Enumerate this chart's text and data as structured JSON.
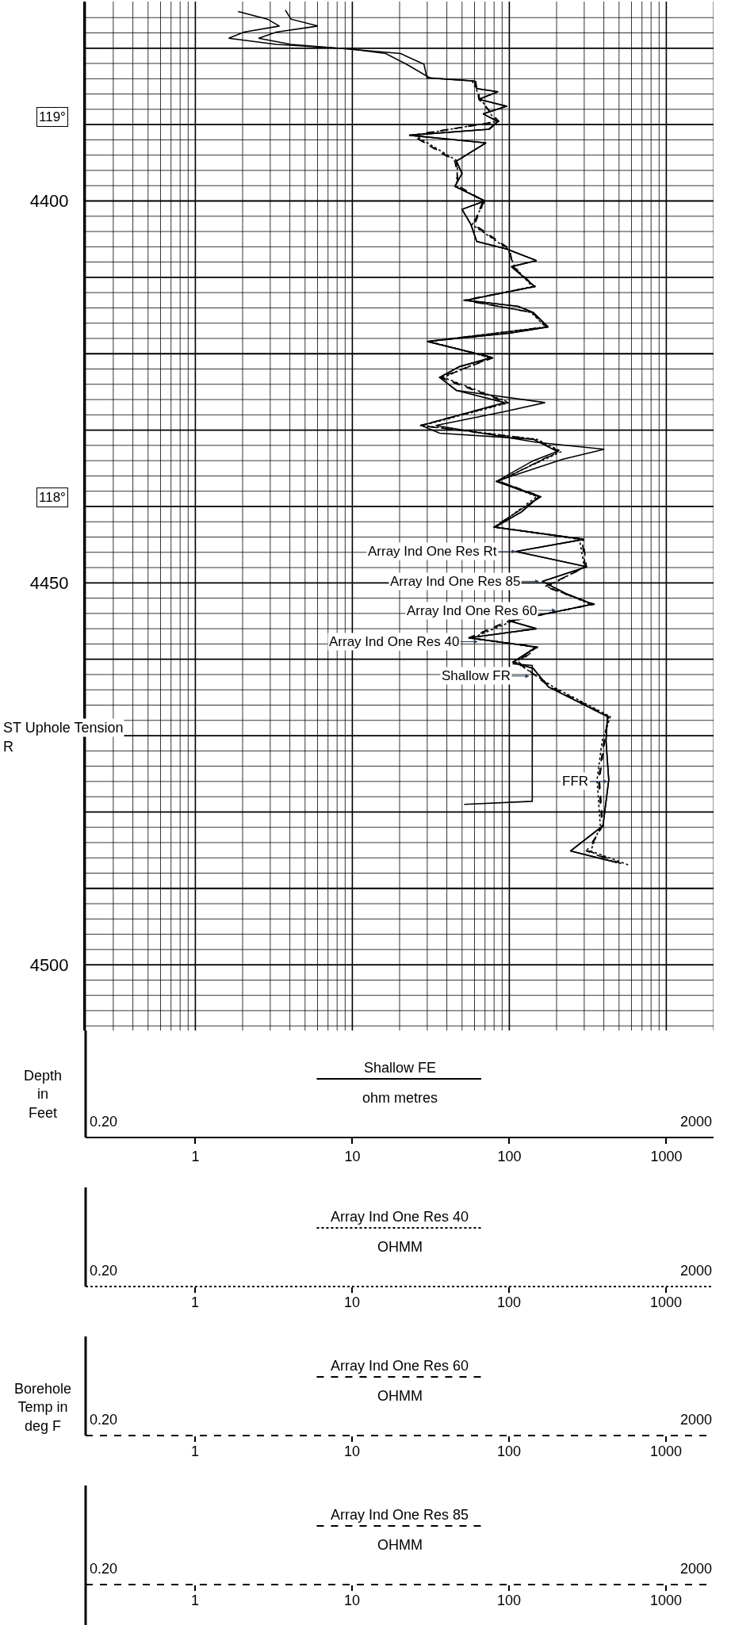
{
  "chart_data": [
    {
      "type": "line",
      "ylabel": "Depth in Feet",
      "log": "x",
      "grid": true,
      "xlim": [
        0.2,
        2000
      ],
      "ylim": [
        4508.6,
        4373.9
      ],
      "xticks": [
        {
          "value": 0.2,
          "label": null
        },
        {
          "value": 0.3,
          "label": null
        },
        {
          "value": 0.4,
          "label": null
        },
        {
          "value": 0.5,
          "label": null
        },
        {
          "value": 0.6,
          "label": null
        },
        {
          "value": 0.7,
          "label": null
        },
        {
          "value": 0.8,
          "label": null
        },
        {
          "value": 0.9,
          "label": null
        },
        1,
        {
          "value": 2,
          "label": null
        },
        {
          "value": 3,
          "label": null
        },
        {
          "value": 4,
          "label": null
        },
        {
          "value": 5,
          "label": null
        },
        {
          "value": 6,
          "label": null
        },
        {
          "value": 7,
          "label": null
        },
        {
          "value": 8,
          "label": null
        },
        {
          "value": 9,
          "label": null
        },
        10,
        {
          "value": 20,
          "label": null
        },
        {
          "value": 30,
          "label": null
        },
        {
          "value": 40,
          "label": null
        },
        {
          "value": 50,
          "label": null
        },
        {
          "value": 60,
          "label": null
        },
        {
          "value": 70,
          "label": null
        },
        {
          "value": 80,
          "label": null
        },
        {
          "value": 90,
          "label": null
        },
        100,
        {
          "value": 200,
          "label": null
        },
        {
          "value": 300,
          "label": null
        },
        {
          "value": 400,
          "label": null
        },
        {
          "value": 500,
          "label": null
        },
        {
          "value": 600,
          "label": null
        },
        {
          "value": 700,
          "label": null
        },
        {
          "value": 800,
          "label": null
        },
        {
          "value": 900,
          "label": null
        },
        1000,
        {
          "value": 2000,
          "label": null
        }
      ],
      "yticks": [
        {
          "value": 4376,
          "label": null
        },
        {
          "value": 4378,
          "label": null
        },
        {
          "value": 4380,
          "label": null
        },
        {
          "value": 4382,
          "label": null
        },
        {
          "value": 4384,
          "label": null
        },
        {
          "value": 4386,
          "label": null
        },
        {
          "value": 4388,
          "label": null
        },
        {
          "value": 4390,
          "label": null
        },
        {
          "value": 4392,
          "label": null
        },
        {
          "value": 4394,
          "label": null
        },
        {
          "value": 4396,
          "label": null
        },
        {
          "value": 4398,
          "label": null
        },
        4400,
        {
          "value": 4402,
          "label": null
        },
        {
          "value": 4404,
          "label": null
        },
        {
          "value": 4406,
          "label": null
        },
        {
          "value": 4408,
          "label": null
        },
        {
          "value": 4410,
          "label": null
        },
        {
          "value": 4412,
          "label": null
        },
        {
          "value": 4414,
          "label": null
        },
        {
          "value": 4416,
          "label": null
        },
        {
          "value": 4418,
          "label": null
        },
        {
          "value": 4420,
          "label": null
        },
        {
          "value": 4422,
          "label": null
        },
        {
          "value": 4424,
          "label": null
        },
        {
          "value": 4426,
          "label": null
        },
        {
          "value": 4428,
          "label": null
        },
        {
          "value": 4430,
          "label": null
        },
        {
          "value": 4432,
          "label": null
        },
        {
          "value": 4434,
          "label": null
        },
        {
          "value": 4436,
          "label": null
        },
        {
          "value": 4438,
          "label": null
        },
        {
          "value": 4440,
          "label": null
        },
        {
          "value": 4442,
          "label": null
        },
        {
          "value": 4444,
          "label": null
        },
        {
          "value": 4446,
          "label": null
        },
        {
          "value": 4448,
          "label": null
        },
        4450,
        {
          "value": 4452,
          "label": null
        },
        {
          "value": 4454,
          "label": null
        },
        {
          "value": 4456,
          "label": null
        },
        {
          "value": 4458,
          "label": null
        },
        {
          "value": 4460,
          "label": null
        },
        {
          "value": 4462,
          "label": null
        },
        {
          "value": 4464,
          "label": null
        },
        {
          "value": 4466,
          "label": null
        },
        {
          "value": 4468,
          "label": null
        },
        {
          "value": 4470,
          "label": null
        },
        {
          "value": 4472,
          "label": null
        },
        {
          "value": 4474,
          "label": null
        },
        {
          "value": 4476,
          "label": null
        },
        {
          "value": 4478,
          "label": null
        },
        {
          "value": 4480,
          "label": null
        },
        {
          "value": 4482,
          "label": null
        },
        {
          "value": 4484,
          "label": null
        },
        {
          "value": 4486,
          "label": null
        },
        {
          "value": 4488,
          "label": null
        },
        {
          "value": 4490,
          "label": null
        },
        {
          "value": 4492,
          "label": null
        },
        {
          "value": 4494,
          "label": null
        },
        {
          "value": 4496,
          "label": null
        },
        {
          "value": 4498,
          "label": null
        },
        4500,
        {
          "value": 4502,
          "label": null
        },
        {
          "value": 4504,
          "label": null
        },
        {
          "value": 4506,
          "label": null
        },
        {
          "value": 4508,
          "label": null
        }
      ],
      "series": [
        {
          "color": "#000000",
          "line_style": "solid",
          "x": [
            3.74,
            4.07,
            6.02,
            3.28,
            2.53,
            4.07,
            9.29,
            20.3,
            28.6,
            29.9,
            60,
            62,
            84,
            64,
            95,
            68,
            84,
            74,
            23,
            71,
            46,
            50,
            45,
            70,
            50,
            57,
            62,
            96,
            149,
            103,
            145,
            53,
            114,
            142,
            177,
            101,
            30,
            77,
            48,
            36,
            46,
            169,
            92,
            34,
            149,
            403,
            220,
            82,
            155,
            120,
            81,
            299,
            110,
            312,
            162,
            229,
            340,
            101,
            149,
            55,
            149,
            105,
            142,
            177,
            422,
            413,
            430,
            395,
            245,
            460
          ],
          "values": [
            4375.0,
            4376.2,
            4377.1,
            4377.9,
            4378.7,
            4379.5,
            4380.1,
            4380.7,
            4382.1,
            4383.9,
            4384.3,
            4385.3,
            4385.7,
            4386.7,
            4387.6,
            4388.6,
            4389.6,
            4390.6,
            4391.4,
            4392.4,
            4394.8,
            4396.4,
            4398.1,
            4400.0,
            4401.1,
            4403.1,
            4405.3,
            4406.3,
            4407.8,
            4408.6,
            4411.2,
            4413.0,
            4413.8,
            4414.6,
            4416.5,
            4417.3,
            4418.4,
            4420.5,
            4421.7,
            4423.1,
            4424.8,
            4426.4,
            4427.6,
            4429.4,
            4431.6,
            4432.5,
            4433.8,
            4436.7,
            4438.7,
            4440.7,
            4442.7,
            4444.3,
            4445.9,
            4447.9,
            4449.8,
            4451.4,
            4452.8,
            4455.0,
            4456.0,
            4457.2,
            4458.4,
            4460.4,
            4461.2,
            4463.6,
            4467.5,
            4470.7,
            4475.8,
            4481.8,
            4485.1,
            4486.5
          ]
        },
        {
          "color": "#000000",
          "line_style": "dotted",
          "x": [
            58,
            66,
            82,
            25,
            47,
            46,
            70,
            58,
            98,
            108,
            140,
            54,
            138,
            170,
            31,
            75,
            38,
            100,
            28,
            150,
            215,
            84,
            150,
            82,
            280,
            300,
            175,
            330,
            105,
            58,
            145,
            110,
            190,
            440,
            390,
            362,
            380,
            330,
            571
          ],
          "values": [
            4384.3,
            4386.7,
            4389.6,
            4391.4,
            4394.8,
            4398.1,
            4400.0,
            4403.1,
            4406.3,
            4408.6,
            4411.2,
            4413.0,
            4414.6,
            4416.5,
            4418.4,
            4420.5,
            4423.1,
            4426.4,
            4429.4,
            4431.2,
            4432.8,
            4436.7,
            4438.7,
            4442.7,
            4444.3,
            4447.9,
            4450.5,
            4452.8,
            4455.0,
            4457.2,
            4458.4,
            4460.4,
            4463.6,
            4467.5,
            4470.7,
            4475.8,
            4481.8,
            4485.1,
            4486.9
          ]
        },
        {
          "color": "#000000",
          "line_style": "dashed",
          "x": [
            60,
            65,
            85,
            24,
            46,
            47,
            68,
            59,
            100,
            106,
            145,
            52,
            140,
            172,
            30,
            78,
            37,
            98,
            27,
            145,
            210,
            85,
            158,
            80,
            290,
            305,
            170,
            345,
            100,
            56,
            150,
            112,
            185,
            430,
            400,
            370,
            390,
            320,
            540
          ],
          "values": [
            4384.3,
            4386.7,
            4389.6,
            4391.4,
            4394.8,
            4398.1,
            4400.0,
            4403.1,
            4406.3,
            4408.6,
            4411.2,
            4413.0,
            4414.6,
            4416.5,
            4418.4,
            4420.5,
            4423.1,
            4426.4,
            4429.4,
            4431.2,
            4432.8,
            4436.7,
            4438.7,
            4442.7,
            4444.3,
            4447.9,
            4450.5,
            4452.8,
            4455.0,
            4457.2,
            4458.4,
            4460.4,
            4463.6,
            4467.5,
            4470.7,
            4475.8,
            4481.8,
            4485.1,
            4486.9
          ]
        },
        {
          "color": "#000000",
          "line_style": "dashed",
          "x": [
            61,
            64,
            86,
            24,
            45,
            48,
            69,
            60,
            101,
            104,
            147,
            51,
            141,
            175,
            30,
            80,
            36,
            96,
            27,
            143,
            205,
            86,
            160,
            79,
            295,
            310,
            168,
            350,
            98,
            55,
            152,
            115,
            180,
            425,
            405,
            375,
            395,
            310,
            520
          ],
          "values": [
            4384.3,
            4386.7,
            4389.6,
            4391.4,
            4394.8,
            4398.1,
            4400.0,
            4403.1,
            4406.3,
            4408.6,
            4411.2,
            4413.0,
            4414.6,
            4416.5,
            4418.4,
            4420.5,
            4423.1,
            4426.4,
            4429.4,
            4431.2,
            4432.8,
            4436.7,
            4438.7,
            4442.7,
            4444.3,
            4447.9,
            4450.5,
            4452.8,
            4455.0,
            4457.2,
            4458.4,
            4460.4,
            4463.6,
            4467.5,
            4470.7,
            4475.8,
            4481.8,
            4485.1,
            4486.9
          ]
        },
        {
          "color": "#000000",
          "line_style": "solid",
          "x": [
            1.87,
            2.88,
            3.43,
            2.04,
            1.63,
            3.28,
            9.7,
            16.3,
            22.1,
            31.3,
            60,
            62,
            85,
            64,
            97,
            68,
            85,
            75,
            23,
            71,
            46,
            50,
            45,
            70,
            50,
            57,
            62,
            97,
            149,
            103,
            145,
            53,
            114,
            142,
            177,
            101,
            30,
            78,
            48,
            36,
            46,
            93,
            27.5,
            36,
            142,
            202,
            142,
            83,
            155,
            120,
            81,
            299,
            110,
            312,
            162,
            229,
            340,
            101,
            149,
            55,
            149,
            105,
            142,
            177,
            422,
            413,
            430,
            395,
            245,
            460
          ],
          "values": [
            4375.2,
            4376.2,
            4377.1,
            4377.9,
            4378.7,
            4379.5,
            4380.1,
            4380.7,
            4382.1,
            4383.9,
            4384.3,
            4385.3,
            4385.7,
            4386.7,
            4387.6,
            4388.6,
            4389.6,
            4390.6,
            4391.4,
            4392.4,
            4394.8,
            4396.4,
            4398.1,
            4400.0,
            4401.1,
            4403.1,
            4405.3,
            4406.3,
            4407.8,
            4408.6,
            4411.2,
            4413.0,
            4413.8,
            4414.6,
            4416.5,
            4417.3,
            4418.4,
            4420.5,
            4421.7,
            4423.1,
            4424.8,
            4426.4,
            4429.4,
            4430.4,
            4431.2,
            4432.8,
            4434.0,
            4436.7,
            4438.7,
            4440.7,
            4442.7,
            4444.3,
            4445.9,
            4447.9,
            4449.8,
            4451.4,
            4452.8,
            4455.0,
            4456.0,
            4457.2,
            4458.4,
            4460.4,
            4461.2,
            4463.6,
            4467.5,
            4470.7,
            4475.8,
            4481.8,
            4485.1,
            4486.5
          ]
        },
        {
          "color": "#000000",
          "line_style": "solid",
          "x": [
            105,
            140,
            140,
            51.5
          ],
          "values": [
            4460.6,
            4460.8,
            4478.6,
            4479.0
          ]
        }
      ],
      "annotations": [
        "Borehole Temp in deg F",
        "119°",
        "118°",
        "ST Uphole Tension",
        "R",
        {
          "text": "Array Ind One Res Rt",
          "x": 110,
          "y": 4445.9
        },
        {
          "text": "Array Ind One Res 85",
          "x": 155,
          "y": 4449.8
        },
        {
          "text": "Array Ind One Res 60",
          "x": 198,
          "y": 4453.6
        },
        {
          "text": "Array Ind One Res 40",
          "x": 63,
          "y": 4457.7
        },
        {
          "text": "Shallow FR",
          "x": 134,
          "y": 4462.2
        },
        {
          "text": "FFR",
          "x": 422,
          "y": 4476.0
        }
      ]
    },
    {
      "type": "other",
      "title": "Shallow FE",
      "xlabel": "ohm metres",
      "annotations": [
        "0.20",
        "2000"
      ]
    },
    {
      "type": "other",
      "title": "Array Ind One Res 40",
      "xlabel": "OHMM",
      "annotations": [
        "0.20",
        "1",
        "10",
        "100",
        "1000",
        "2000"
      ]
    },
    {
      "type": "other",
      "title": "Array Ind One Res 60",
      "xlabel": "OHMM",
      "annotations": [
        "0.20",
        "1",
        "10",
        "100",
        "1000",
        "2000"
      ]
    },
    {
      "type": "other",
      "title": "Array Ind One Res 85",
      "xlabel": "OHMM",
      "annotations": [
        "0.20",
        "1",
        "10",
        "100",
        "1000",
        "2000"
      ]
    }
  ]
}
